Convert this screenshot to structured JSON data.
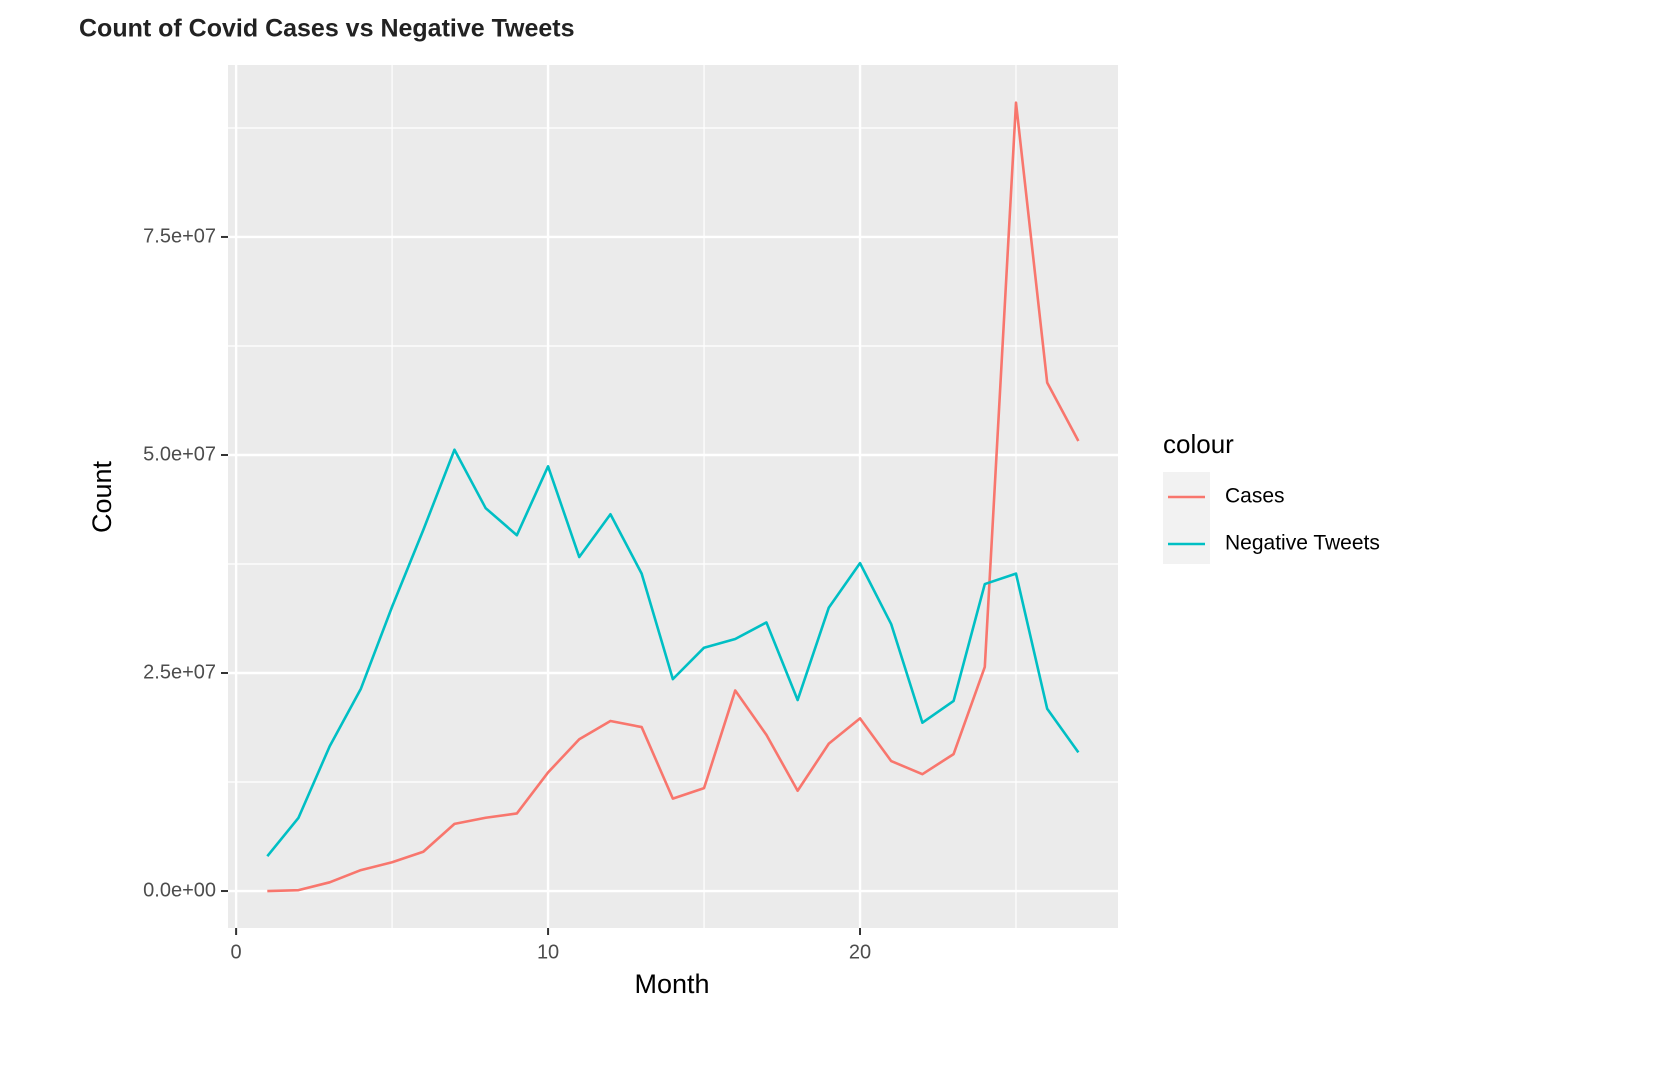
{
  "chart_data": {
    "type": "line",
    "title": "Count of Covid Cases vs Negative Tweets",
    "x_label": "Month",
    "y_label": "Count",
    "legend_title": "colour",
    "x": [
      1,
      2,
      3,
      4,
      5,
      6,
      7,
      8,
      9,
      10,
      11,
      12,
      13,
      14,
      15,
      16,
      17,
      18,
      19,
      20,
      21,
      22,
      23,
      24,
      25,
      26,
      27
    ],
    "series": [
      {
        "name": "Cases",
        "color": "#f8766d",
        "values": [
          0,
          100000,
          1000000,
          2400000,
          3300000,
          4500000,
          7700000,
          8400000,
          8900000,
          13600000,
          17400000,
          19500000,
          18800000,
          10600000,
          11800000,
          23000000,
          17900000,
          11500000,
          16900000,
          19800000,
          14900000,
          13400000,
          15700000,
          25700000,
          90400000,
          58300000,
          51600000
        ]
      },
      {
        "name": "Negative Tweets",
        "color": "#00bfc4",
        "values": [
          4000000,
          8400000,
          16600000,
          23200000,
          32600000,
          41400000,
          50600000,
          43900000,
          40800000,
          48700000,
          38300000,
          43200000,
          36400000,
          24300000,
          27900000,
          28900000,
          30800000,
          21900000,
          32500000,
          37600000,
          30600000,
          19300000,
          21800000,
          35200000,
          36400000,
          20900000,
          15900000
        ]
      }
    ],
    "xlim": [
      -0.26,
      28.27
    ],
    "xticks": [
      0,
      10,
      20
    ],
    "ylim": [
      -4240000,
      94720000
    ],
    "yticks": [
      {
        "value": 0,
        "label": "0.0e+00"
      },
      {
        "value": 25000000,
        "label": "2.5e+07"
      },
      {
        "value": 50000000,
        "label": "5.0e+07"
      },
      {
        "value": 75000000,
        "label": "7.5e+07"
      }
    ],
    "grid": true
  }
}
